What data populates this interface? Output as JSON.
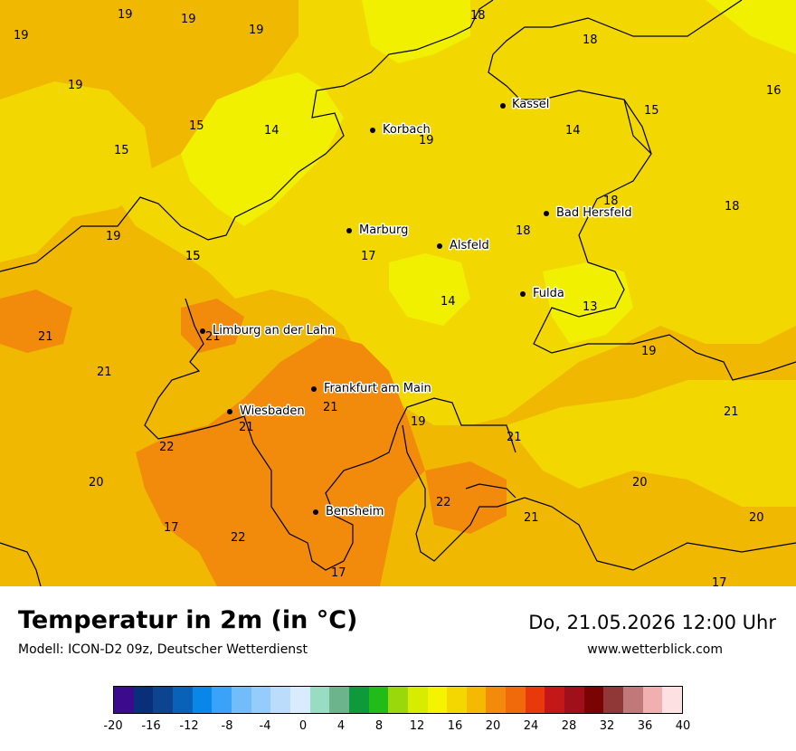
{
  "title": "Temperatur in 2m (in °C)",
  "model": "Modell: ICON-D2 09z, Deutscher Wetterdienst",
  "date": "Do, 21.05.2026 12:00 Uhr",
  "website": "www.wetterblick.com",
  "colors": {
    "cool": "#f0f000",
    "mild": "#f2d800",
    "warm": "#f0b800",
    "hot": "#f28a0c",
    "border": "#000000"
  },
  "cities": [
    {
      "name": "Kassel"
    },
    {
      "name": "Korbach"
    },
    {
      "name": "Bad Hersfeld"
    },
    {
      "name": "Marburg"
    },
    {
      "name": "Alsfeld"
    },
    {
      "name": "Fulda"
    },
    {
      "name": "Limburg an der Lahn"
    },
    {
      "name": "Frankfurt am Main"
    },
    {
      "name": "Wiesbaden"
    },
    {
      "name": "Bensheim"
    }
  ],
  "temperatures": [
    "19",
    "19",
    "19",
    "19",
    "18",
    "18",
    "16",
    "19",
    "15",
    "15",
    "14",
    "14",
    "19",
    "15",
    "15",
    "18",
    "18",
    "19",
    "15",
    "18",
    "17",
    "14",
    "13",
    "21",
    "21",
    "21",
    "21",
    "19",
    "21",
    "21",
    "19",
    "22",
    "21",
    "20",
    "20",
    "22",
    "21",
    "20",
    "17",
    "22",
    "17",
    "17"
  ],
  "legend": {
    "ticks": [
      "-20",
      "-16",
      "-12",
      "-8",
      "-4",
      "0",
      "4",
      "8",
      "12",
      "16",
      "20",
      "24",
      "28",
      "32",
      "36",
      "40"
    ],
    "colors": [
      "#3c0a8c",
      "#08307a",
      "#0c4490",
      "#0a62b8",
      "#0a86e8",
      "#3aa2f8",
      "#72bcfa",
      "#94ccfc",
      "#bcdcfc",
      "#d8ecfe",
      "#98dcc4",
      "#6cb48c",
      "#0e9a3a",
      "#22bc18",
      "#9ad80c",
      "#d8ec00",
      "#f4f400",
      "#f4d600",
      "#f4b900",
      "#f28a0c",
      "#f06a0c",
      "#e8380c",
      "#c41818",
      "#a0101a",
      "#7a0404",
      "#903838",
      "#c07878",
      "#f0b0b0",
      "#fde0e2"
    ]
  }
}
